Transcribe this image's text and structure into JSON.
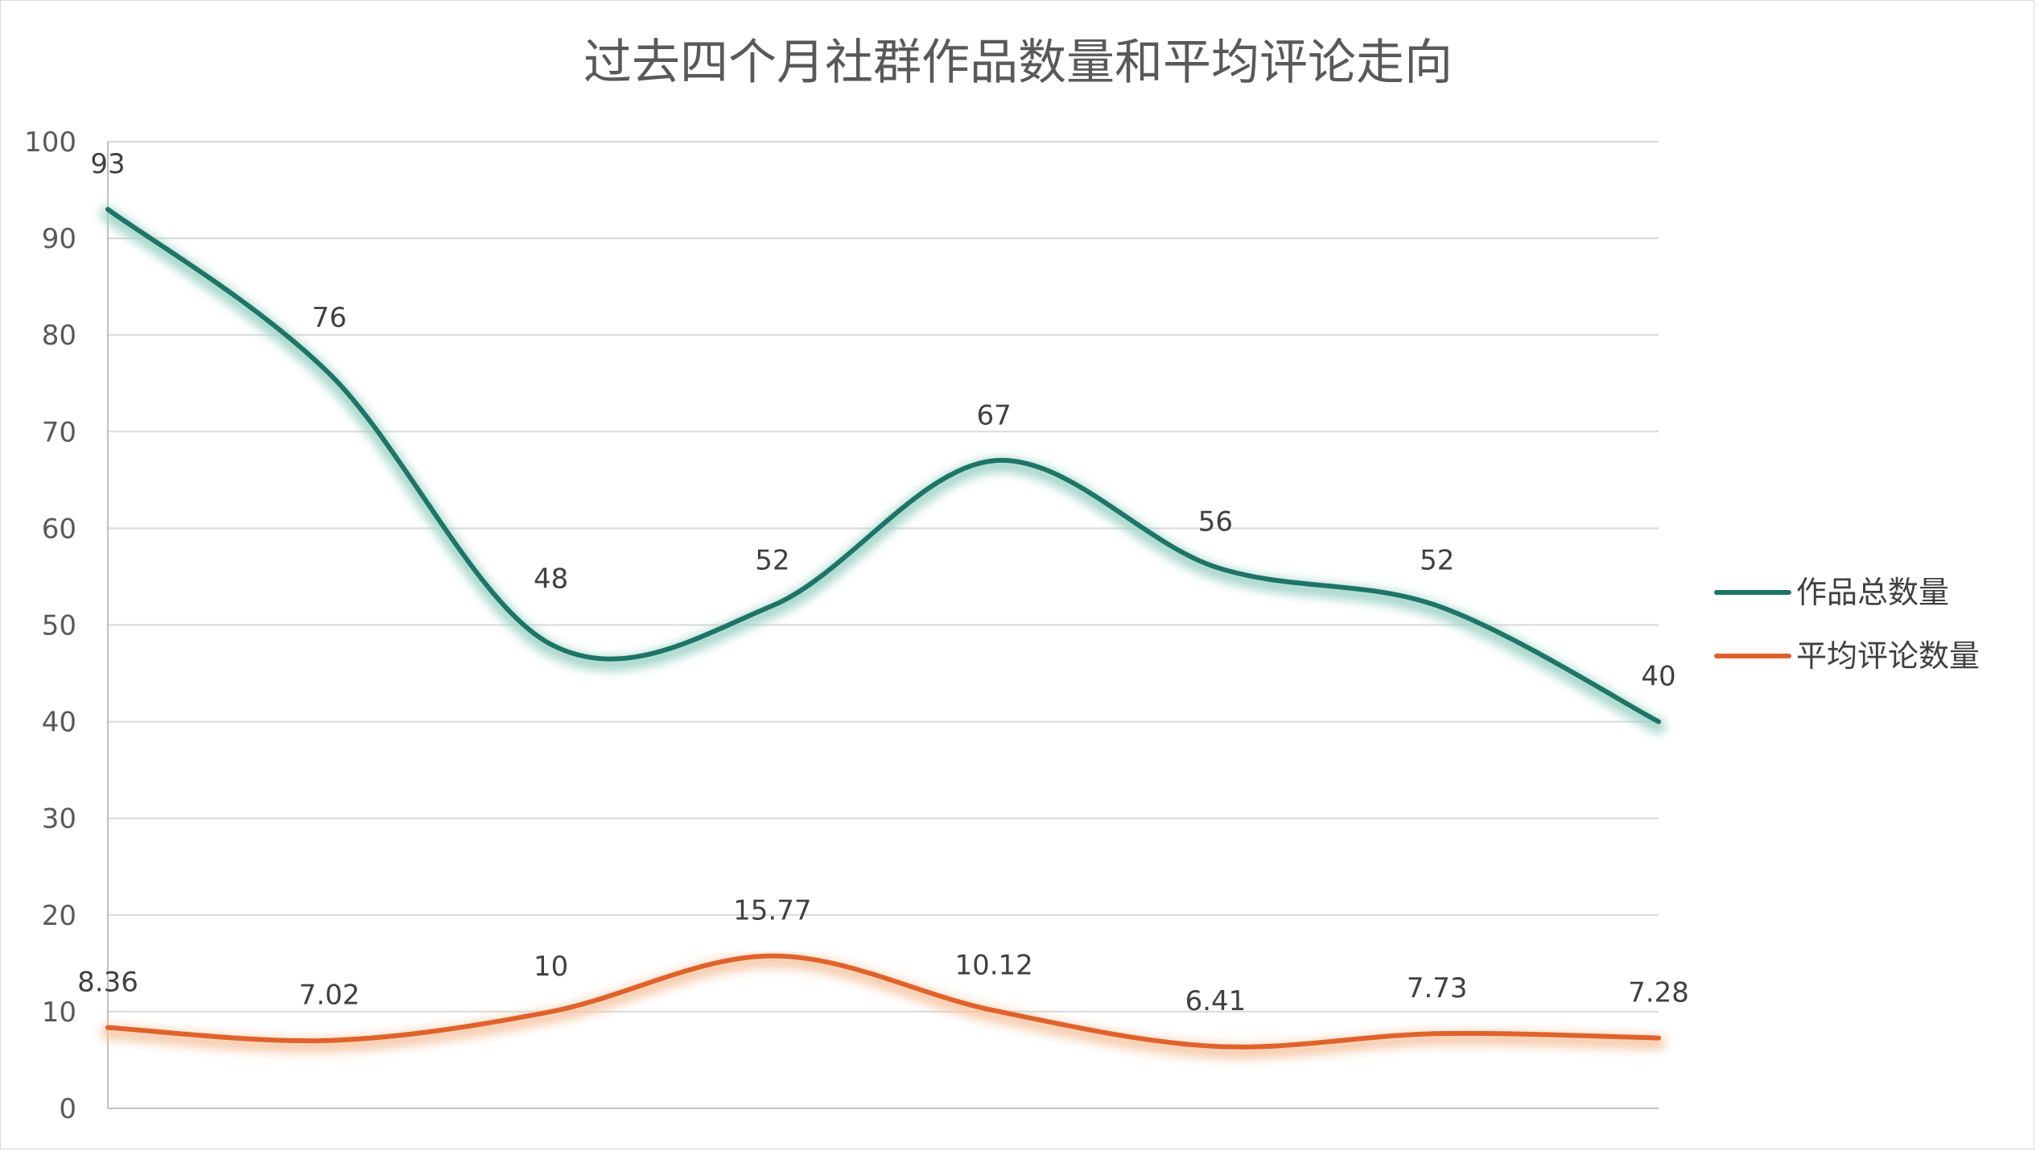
{
  "chart_data": {
    "type": "line",
    "title": "过去四个月社群作品数量和平均评论走向",
    "xlabel": "",
    "ylabel": "",
    "ylim": [
      0,
      100
    ],
    "yticks": [
      "0",
      "10",
      "20",
      "30",
      "40",
      "50",
      "60",
      "70",
      "80",
      "90",
      "100"
    ],
    "grid": true,
    "smooth": true,
    "legend_position": "right",
    "point_count": 8,
    "series": [
      {
        "name": "作品总数量",
        "color": "#1e7466",
        "glow_color": "#9ed3c6",
        "values": [
          93,
          76,
          48,
          52,
          67,
          56,
          52,
          40
        ],
        "labels": [
          "93",
          "76",
          "48",
          "52",
          "67",
          "56",
          "52",
          "40"
        ]
      },
      {
        "name": "平均评论数量",
        "color": "#e0622b",
        "glow_color": "#f6c7a6",
        "values": [
          8.36,
          7.02,
          10,
          15.77,
          10.12,
          6.41,
          7.73,
          7.28
        ],
        "labels": [
          "8.36",
          "7.02",
          "10",
          "15.77",
          "10.12",
          "6.41",
          "7.73",
          "7.28"
        ]
      }
    ]
  }
}
